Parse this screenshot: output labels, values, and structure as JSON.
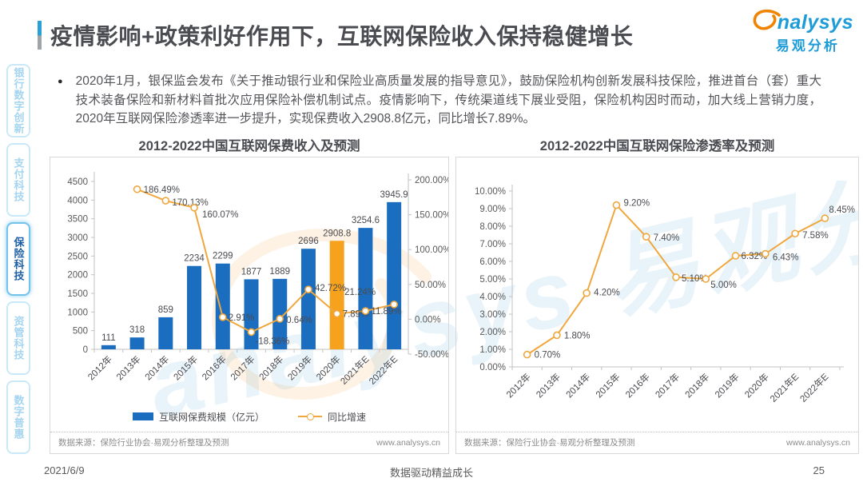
{
  "page": {
    "date": "2021/6/9",
    "slogan": "数据驱动精益成长",
    "page_number": "25"
  },
  "header": {
    "title": "疫情影响+政策利好作用下，互联网保险收入保持稳健增长",
    "logo": {
      "brand": "nalysys",
      "brand_cn": "易观分析",
      "icon": "analysys-swirl-icon"
    }
  },
  "sidebar": {
    "items": [
      {
        "label": "银行数字创新",
        "active": false
      },
      {
        "label": "支付科技",
        "active": false
      },
      {
        "label": "保险科技",
        "active": true
      },
      {
        "label": "资管科技",
        "active": false
      },
      {
        "label": "数字普惠",
        "active": false
      }
    ]
  },
  "bullet": {
    "text": "2020年1月，银保监会发布《关于推动银行业和保险业高质量发展的指导意见》，鼓励保险机构创新发展科技保险，推进首台（套）重大技术装备保险和新材料首批次应用保险补偿机制试点。疫情影响下，传统渠道线下展业受阻，保险机构因时而动，加大线上营销力度，2020年互联网保险渗透率进一步提升，实现保费收入2908.8亿元，同比增长7.89%。"
  },
  "watermark": {
    "text": "analysys 易观分析"
  },
  "panels": [
    {
      "source": "数据来源：保险行业协会·易观分析整理及预测",
      "website": "www.analysys.cn"
    },
    {
      "source": "数据来源：保险行业协会·易观分析整理及预测",
      "website": "www.analysys.cn"
    }
  ],
  "chart_data": [
    {
      "type": "bar",
      "title": "2012-2022中国互联网保费收入及预测",
      "categories": [
        "2012年",
        "2013年",
        "2014年",
        "2015年",
        "2016年",
        "2017年",
        "2018年",
        "2019年",
        "2020年",
        "2021年E",
        "2022年E"
      ],
      "series": [
        {
          "name": "互联网保费规模（亿元）",
          "chart": "bar",
          "values": [
            111,
            318,
            859,
            2234,
            2299,
            1877,
            1889,
            2696,
            2908.8,
            3254.6,
            3945.9
          ],
          "labels": [
            "111",
            "318",
            "859",
            "2234",
            "2299",
            "1877",
            "1889",
            "2696",
            "2908.8",
            "3254.6",
            "3945.9"
          ]
        },
        {
          "name": "同比增速",
          "chart": "line",
          "values": [
            null,
            186.49,
            170.13,
            160.07,
            2.91,
            -18.36,
            0.64,
            42.72,
            7.89,
            11.89,
            21.24
          ],
          "labels": [
            "",
            "186.49%",
            "170.13%",
            "160.07%",
            "2.91%",
            "-18.36%",
            "0.64%",
            "42.72%",
            "7.89%",
            "11.89%",
            "21.24%"
          ]
        }
      ],
      "y_left": {
        "min": 0,
        "max": 4500,
        "step": 500,
        "ticks": [
          "0",
          "500",
          "1000",
          "1500",
          "2000",
          "2500",
          "3000",
          "3500",
          "4000",
          "4500"
        ]
      },
      "y_right": {
        "min": -50,
        "max": 200,
        "step": 50,
        "ticks": [
          "-50.00%",
          "0.00%",
          "50.00%",
          "100.00%",
          "150.00%",
          "200.00%"
        ]
      },
      "highlight_index": 8,
      "colors": {
        "bar": "#1b6dbf",
        "highlight": "#f7a21c",
        "line": "#efa73e"
      },
      "legend_position": "bottom",
      "grid": false
    },
    {
      "type": "line",
      "title": "2012-2022中国互联网保险渗透率及预测",
      "categories": [
        "2012年",
        "2013年",
        "2014年",
        "2015年",
        "2016年",
        "2017年",
        "2018年",
        "2019年",
        "2020年",
        "2021年E",
        "2022年E"
      ],
      "values": [
        0.7,
        1.8,
        4.2,
        9.2,
        7.4,
        5.1,
        5.0,
        6.32,
        6.43,
        7.58,
        8.45
      ],
      "labels": [
        "0.70%",
        "1.80%",
        "4.20%",
        "9.20%",
        "7.40%",
        "5.10%",
        "5.00%",
        "6.32%",
        "6.43%",
        "7.58%",
        "8.45%"
      ],
      "ylim": [
        0,
        10
      ],
      "ystep": 1,
      "yticks": [
        "0.00%",
        "1.00%",
        "2.00%",
        "3.00%",
        "4.00%",
        "5.00%",
        "6.00%",
        "7.00%",
        "8.00%",
        "9.00%",
        "10.00%"
      ],
      "colors": {
        "line": "#efa73e"
      },
      "legend_position": "none",
      "grid": false
    }
  ]
}
